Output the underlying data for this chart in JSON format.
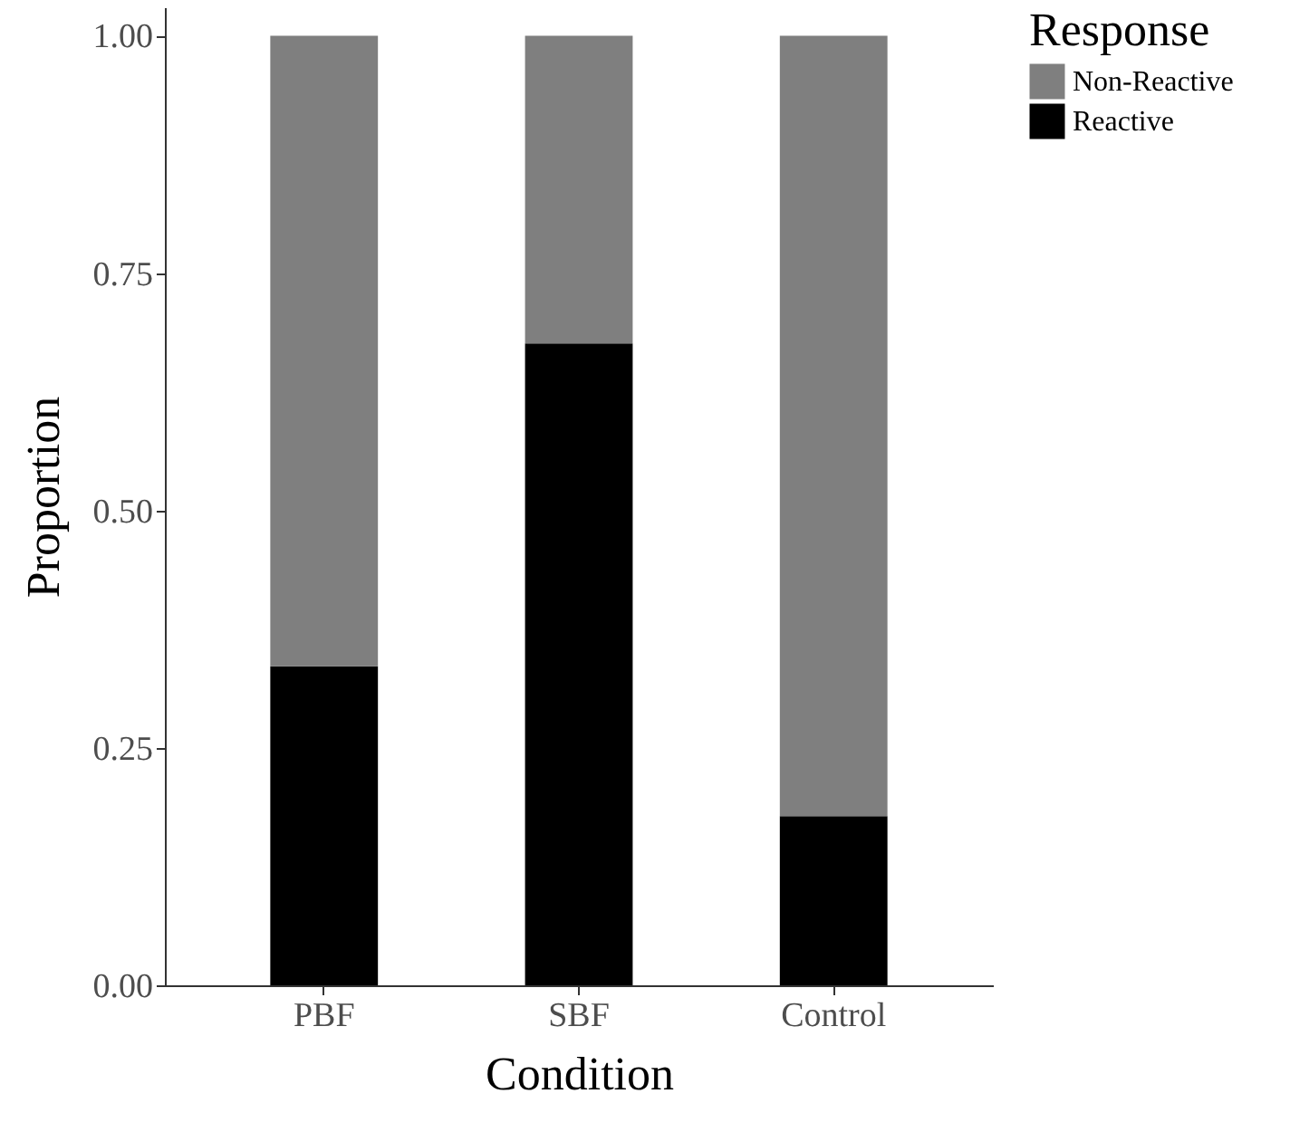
{
  "chart_data": {
    "type": "bar",
    "stacked": true,
    "xlabel": "Condition",
    "ylabel": "Proportion",
    "legend_title": "Response",
    "legend": "right",
    "grid": false,
    "categories": [
      "PBF",
      "SBF",
      "Control"
    ],
    "series": [
      {
        "name": "Reactive",
        "color": "#000000",
        "values": [
          0.336,
          0.676,
          0.178
        ]
      },
      {
        "name": "Non-Reactive",
        "color": "#7f7f7f",
        "values": [
          0.664,
          0.324,
          0.822
        ]
      }
    ],
    "ylim": [
      0,
      1.03
    ],
    "yticks": [
      {
        "value": 0,
        "label": "0.00"
      },
      {
        "value": 0.25,
        "label": "0.25"
      },
      {
        "value": 0.5,
        "label": "0.50"
      },
      {
        "value": 0.75,
        "label": "0.75"
      },
      {
        "value": 1,
        "label": "1.00"
      }
    ]
  }
}
